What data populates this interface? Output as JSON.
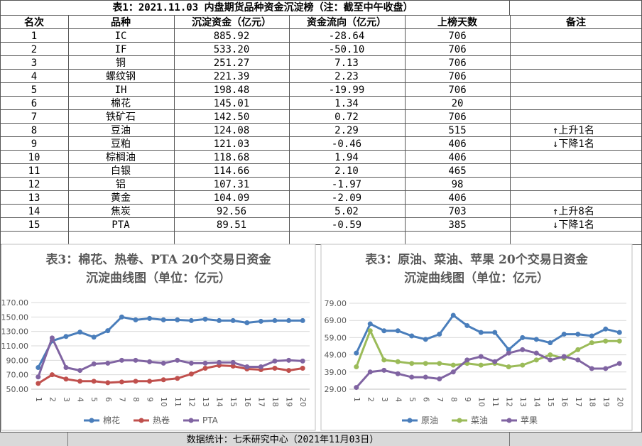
{
  "table": {
    "title": "表1：2021.11.03 内盘期货品种资金沉淀榜（注：截至中午收盘）",
    "headers": [
      "名次",
      "品种",
      "沉淀资金（亿元）",
      "资金流向（亿元）",
      "上榜天数",
      "备注"
    ],
    "rows": [
      [
        "1",
        "IC",
        "885.92",
        "-28.64",
        "706",
        ""
      ],
      [
        "2",
        "IF",
        "533.20",
        "-50.10",
        "706",
        ""
      ],
      [
        "3",
        "铜",
        "251.27",
        "7.13",
        "706",
        ""
      ],
      [
        "4",
        "螺纹钢",
        "221.39",
        "2.23",
        "706",
        ""
      ],
      [
        "5",
        "IH",
        "198.48",
        "-19.99",
        "706",
        ""
      ],
      [
        "6",
        "棉花",
        "145.01",
        "1.34",
        "20",
        ""
      ],
      [
        "7",
        "铁矿石",
        "142.50",
        "0.72",
        "706",
        ""
      ],
      [
        "8",
        "豆油",
        "124.08",
        "2.29",
        "515",
        "↑上升1名"
      ],
      [
        "9",
        "豆粕",
        "121.03",
        "-0.46",
        "406",
        "↓下降1名"
      ],
      [
        "10",
        "棕榈油",
        "118.68",
        "1.94",
        "406",
        ""
      ],
      [
        "11",
        "白银",
        "114.66",
        "2.10",
        "465",
        ""
      ],
      [
        "12",
        "铝",
        "107.31",
        "-1.97",
        "98",
        ""
      ],
      [
        "13",
        "黄金",
        "104.09",
        "-2.09",
        "406",
        ""
      ],
      [
        "14",
        "焦炭",
        "92.56",
        "5.02",
        "703",
        "↑上升8名"
      ],
      [
        "15",
        "PTA",
        "89.51",
        "-0.59",
        "385",
        "↓下降1名"
      ]
    ]
  },
  "footer": "数据统计：七禾研究中心（2021年11月03日）",
  "colors": {
    "blue": "#4A7EBB",
    "red": "#C0504D",
    "purple": "#8064A2",
    "green": "#9BBB59"
  },
  "chart_data": [
    {
      "type": "line",
      "title_lines": [
        "表3：棉花、热卷、PTA 20个交易日资金",
        "沉淀曲线图（单位：亿元）"
      ],
      "x": [
        "1",
        "2",
        "3",
        "4",
        "5",
        "6",
        "7",
        "8",
        "9",
        "10",
        "11",
        "12",
        "13",
        "14",
        "15",
        "16",
        "17",
        "18",
        "19",
        "20"
      ],
      "yticks": [
        "50.00",
        "70.00",
        "90.00",
        "110.00",
        "130.00",
        "150.00",
        "170.00"
      ],
      "ylim": [
        50,
        170
      ],
      "grid": true,
      "legend": "bottom",
      "series": [
        {
          "name": "棉花",
          "color": "#4A7EBB",
          "values": [
            80,
            117,
            123,
            129,
            122,
            131,
            150,
            146,
            148,
            146,
            146,
            145,
            147,
            145,
            145,
            142,
            144,
            145,
            145,
            145
          ]
        },
        {
          "name": "热卷",
          "color": "#C0504D",
          "values": [
            58,
            70,
            64,
            61,
            61,
            59,
            60,
            61,
            61,
            63,
            65,
            71,
            79,
            83,
            82,
            78,
            77,
            79,
            76,
            79
          ]
        },
        {
          "name": "PTA",
          "color": "#8064A2",
          "values": [
            67,
            121,
            80,
            76,
            85,
            86,
            90,
            90,
            88,
            86,
            90,
            86,
            86,
            87,
            87,
            81,
            81,
            89,
            90,
            89
          ]
        }
      ]
    },
    {
      "type": "line",
      "title_lines": [
        "表3：原油、菜油、苹果 20个交易日资金",
        "沉淀曲线图（单位：亿元）"
      ],
      "x": [
        "1",
        "2",
        "3",
        "4",
        "5",
        "6",
        "7",
        "8",
        "9",
        "10",
        "11",
        "12",
        "13",
        "14",
        "15",
        "16",
        "17",
        "18",
        "19",
        "20"
      ],
      "yticks": [
        "29.00",
        "39.00",
        "49.00",
        "59.00",
        "69.00",
        "79.00"
      ],
      "ylim": [
        29,
        79
      ],
      "grid": true,
      "legend": "bottom",
      "series": [
        {
          "name": "原油",
          "color": "#4A7EBB",
          "values": [
            50,
            67,
            63,
            63,
            60,
            58,
            61,
            72,
            66,
            62,
            62,
            52,
            59,
            58,
            56,
            61,
            61,
            60,
            64,
            62
          ]
        },
        {
          "name": "菜油",
          "color": "#9BBB59",
          "values": [
            42,
            63,
            46,
            45,
            44,
            44,
            44,
            43,
            44,
            43,
            44,
            42,
            43,
            46,
            49,
            47,
            52,
            56,
            57,
            57
          ]
        },
        {
          "name": "苹果",
          "color": "#8064A2",
          "values": [
            30,
            39,
            40,
            38,
            36,
            36,
            35,
            39,
            46,
            48,
            45,
            50,
            52,
            50,
            46,
            48,
            46,
            41,
            41,
            44
          ]
        }
      ]
    }
  ]
}
